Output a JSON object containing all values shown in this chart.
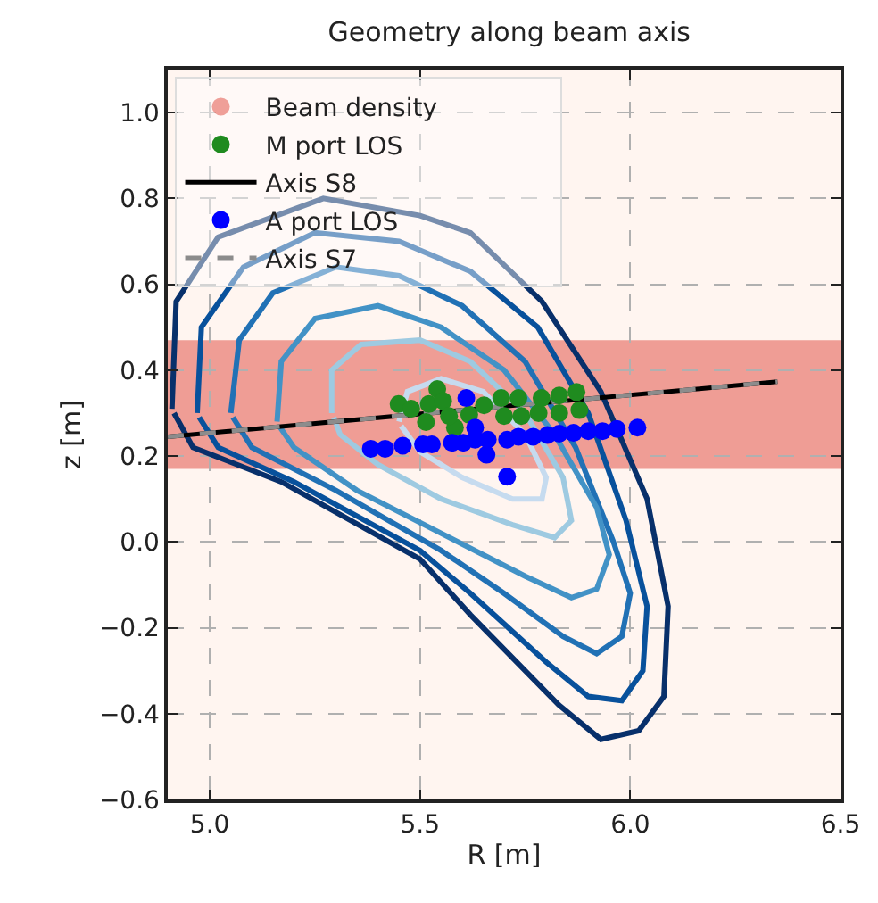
{
  "chart_data": {
    "type": "line",
    "title": "Geometry along beam axis",
    "xlabel": "R [m]",
    "ylabel": "z [m]",
    "xlim": [
      4.9,
      6.5
    ],
    "ylim": [
      -0.6,
      1.1
    ],
    "xticks": [
      {
        "value": 5,
        "label": "5.0"
      },
      {
        "value": 5.5,
        "label": "5.5"
      },
      {
        "value": 6,
        "label": "6.0"
      },
      {
        "value": 6.5,
        "label": "6.5"
      }
    ],
    "yticks": [
      {
        "value": -0.6,
        "label": "−0.6"
      },
      {
        "value": -0.4,
        "label": "−0.4"
      },
      {
        "value": -0.2,
        "label": "−0.2"
      },
      {
        "value": 0,
        "label": "0.0"
      },
      {
        "value": 0.2,
        "label": "0.2"
      },
      {
        "value": 0.4,
        "label": "0.4"
      },
      {
        "value": 0.6,
        "label": "0.6"
      },
      {
        "value": 0.8,
        "label": "0.8"
      },
      {
        "value": 1.0,
        "label": "1.0"
      }
    ],
    "grid": true,
    "legend": "top left",
    "bands": [
      {
        "axis": "y",
        "from": 0.17,
        "to": 0.47,
        "label": "Beam density",
        "color": "#e0453a"
      }
    ],
    "series": [
      {
        "color": "#08306b",
        "x": [
          4.91,
          4.92,
          5.02,
          5.27,
          5.5,
          5.62,
          5.79,
          5.93,
          6.04,
          6.09,
          6.08,
          6.02,
          5.93,
          5.83,
          5.62,
          5.5,
          5.17,
          4.96,
          4.915
        ],
        "values": [
          0.31,
          0.56,
          0.71,
          0.8,
          0.76,
          0.72,
          0.56,
          0.35,
          0.1,
          -0.15,
          -0.36,
          -0.44,
          -0.46,
          -0.38,
          -0.17,
          -0.04,
          0.14,
          0.22,
          0.3
        ]
      },
      {
        "color": "#08519c",
        "x": [
          4.97,
          4.98,
          5.08,
          5.25,
          5.45,
          5.62,
          5.78,
          5.9,
          5.99,
          6.04,
          6.03,
          5.98,
          5.9,
          5.8,
          5.62,
          5.5,
          5.2,
          5.02,
          4.975
        ],
        "values": [
          0.3,
          0.5,
          0.64,
          0.72,
          0.7,
          0.63,
          0.5,
          0.3,
          0.05,
          -0.15,
          -0.3,
          -0.37,
          -0.36,
          -0.28,
          -0.12,
          -0.02,
          0.14,
          0.22,
          0.29
        ]
      },
      {
        "color": "#2171b5",
        "x": [
          5.05,
          5.07,
          5.15,
          5.3,
          5.45,
          5.6,
          5.75,
          5.87,
          5.96,
          6.0,
          5.98,
          5.92,
          5.84,
          5.7,
          5.55,
          5.3,
          5.1,
          5.055
        ],
        "values": [
          0.3,
          0.47,
          0.58,
          0.64,
          0.62,
          0.55,
          0.42,
          0.22,
          0.0,
          -0.12,
          -0.22,
          -0.26,
          -0.22,
          -0.12,
          -0.02,
          0.12,
          0.22,
          0.29
        ]
      },
      {
        "color": "#4292c6",
        "x": [
          5.16,
          5.17,
          5.25,
          5.4,
          5.55,
          5.7,
          5.82,
          5.92,
          5.95,
          5.92,
          5.86,
          5.75,
          5.55,
          5.35,
          5.2,
          5.165
        ],
        "values": [
          0.28,
          0.42,
          0.52,
          0.55,
          0.5,
          0.4,
          0.25,
          0.08,
          -0.03,
          -0.11,
          -0.13,
          -0.08,
          0.02,
          0.12,
          0.22,
          0.27
        ]
      },
      {
        "color": "#9ecae1",
        "x": [
          5.29,
          5.29,
          5.36,
          5.5,
          5.62,
          5.75,
          5.84,
          5.86,
          5.82,
          5.72,
          5.55,
          5.4,
          5.31,
          5.295
        ],
        "values": [
          0.3,
          0.4,
          0.46,
          0.47,
          0.42,
          0.3,
          0.15,
          0.05,
          0.01,
          0.04,
          0.1,
          0.18,
          0.25,
          0.29
        ]
      },
      {
        "color": "#c6dbef",
        "x": [
          5.45,
          5.47,
          5.55,
          5.65,
          5.75,
          5.8,
          5.79,
          5.72,
          5.6,
          5.5,
          5.455
        ],
        "values": [
          0.28,
          0.35,
          0.38,
          0.35,
          0.25,
          0.15,
          0.1,
          0.1,
          0.15,
          0.21,
          0.27
        ]
      },
      {
        "name": "Axis S8",
        "color": "#000000",
        "line_style": "solid",
        "x": [
          4.9,
          6.35
        ],
        "values": [
          0.245,
          0.373
        ]
      },
      {
        "name": "Axis S7",
        "color": "#8c8c8c",
        "line_style": "dashed",
        "x": [
          4.9,
          6.35
        ],
        "values": [
          0.245,
          0.373
        ]
      },
      {
        "type": "scatter",
        "name": "M port LOS",
        "color": "#1f8b1f",
        "marker": "circle",
        "x": [
          5.449,
          5.479,
          5.521,
          5.541,
          5.555,
          5.514,
          5.583,
          5.569,
          5.617,
          5.652,
          5.693,
          5.7,
          5.734,
          5.741,
          5.782,
          5.789,
          5.831,
          5.831,
          5.872,
          5.879
        ],
        "values": [
          0.321,
          0.31,
          0.321,
          0.356,
          0.328,
          0.279,
          0.266,
          0.293,
          0.296,
          0.318,
          0.335,
          0.293,
          0.335,
          0.293,
          0.3,
          0.335,
          0.3,
          0.341,
          0.349,
          0.307
        ]
      },
      {
        "type": "scatter",
        "name": "A port LOS",
        "color": "#0000ff",
        "marker": "circle",
        "x": [
          5.383,
          5.417,
          5.459,
          5.507,
          5.528,
          5.576,
          5.603,
          5.631,
          5.661,
          5.631,
          5.658,
          5.61,
          5.707,
          5.734,
          5.769,
          5.803,
          5.831,
          5.865,
          5.9,
          5.934,
          5.968,
          6.017,
          5.707
        ],
        "values": [
          0.217,
          0.217,
          0.224,
          0.227,
          0.227,
          0.231,
          0.231,
          0.238,
          0.238,
          0.266,
          0.203,
          0.335,
          0.238,
          0.245,
          0.245,
          0.249,
          0.252,
          0.254,
          0.258,
          0.258,
          0.263,
          0.266,
          0.152
        ]
      }
    ]
  }
}
